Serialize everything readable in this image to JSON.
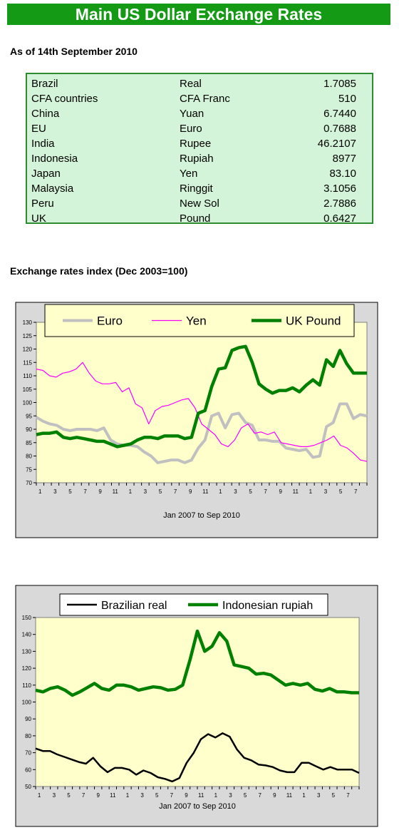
{
  "banner": {
    "title": "Main US Dollar Exchange Rates"
  },
  "asof": "As of 14th September 2010",
  "rates": [
    {
      "country": "Brazil",
      "currency": "Real",
      "value": "1.7085"
    },
    {
      "country": "CFA countries",
      "currency": "CFA Franc",
      "value": "510"
    },
    {
      "country": "China",
      "currency": "Yuan",
      "value": "6.7440"
    },
    {
      "country": "EU",
      "currency": "Euro",
      "value": "0.7688"
    },
    {
      "country": "India",
      "currency": "Rupee",
      "value": "46.2107"
    },
    {
      "country": "Indonesia",
      "currency": "Rupiah",
      "value": "8977"
    },
    {
      "country": "Japan",
      "currency": "Yen",
      "value": "83.10"
    },
    {
      "country": "Malaysia",
      "currency": "Ringgit",
      "value": "3.1056"
    },
    {
      "country": "Peru",
      "currency": "New Sol",
      "value": "2.7886"
    },
    {
      "country": "UK",
      "currency": "Pound",
      "value": "0.6427"
    }
  ],
  "section_title": "Exchange rates index (Dec 2003=100)",
  "colors": {
    "banner": "#149a14",
    "table_bg": "#d3f4d8",
    "plot_bg": "#ffffcc",
    "frame_bg": "#d9d9d9",
    "euro": "#c0c0c0",
    "yen": "#ff00ff",
    "pound": "#008000",
    "real": "#000000",
    "rupiah": "#008000"
  },
  "chart_data": [
    {
      "type": "line",
      "xlabel": "Jan 2007 to Sep 2010",
      "ylabel": "",
      "ylim": [
        70,
        130
      ],
      "yticks": [
        70,
        75,
        80,
        85,
        90,
        95,
        100,
        105,
        110,
        115,
        120,
        125,
        130
      ],
      "xtick_labels": [
        "1",
        "3",
        "5",
        "7",
        "9",
        "11",
        "1",
        "3",
        "5",
        "7",
        "9",
        "11",
        "1",
        "3",
        "5",
        "7",
        "9",
        "11",
        "1",
        "3",
        "5",
        "7"
      ],
      "legend": "top",
      "grid": false,
      "series": [
        {
          "name": "Euro",
          "color": "#c0c0c0",
          "width": 4,
          "values": [
            94.5,
            93,
            92,
            91.5,
            90,
            89.5,
            90,
            90,
            90,
            89.5,
            90.5,
            86,
            84.5,
            84,
            84,
            83.5,
            81.5,
            80,
            77.5,
            78,
            78.5,
            78.5,
            77.5,
            78.5,
            83,
            86,
            95,
            96,
            90.5,
            95.5,
            96,
            92.5,
            91.5,
            86,
            86,
            85.5,
            85.5,
            83,
            82.5,
            82,
            82.5,
            79.5,
            80,
            91,
            92.5,
            99.5,
            99.5,
            94,
            95.5,
            95
          ]
        },
        {
          "name": "Yen",
          "color": "#ff00ff",
          "width": 1.2,
          "values": [
            112.5,
            112,
            110,
            109.5,
            111,
            111.5,
            112.5,
            115,
            111,
            108,
            107,
            107,
            107.5,
            104,
            105.5,
            99.5,
            98,
            92,
            97,
            98.5,
            99,
            100,
            101,
            101.5,
            98,
            92,
            90,
            88,
            84.5,
            83.5,
            86,
            90.5,
            92,
            88.5,
            89,
            88,
            89,
            85,
            84.5,
            84,
            83.5,
            83.5,
            84,
            85,
            86,
            87.5,
            84,
            83,
            81,
            78.5,
            78
          ]
        },
        {
          "name": "UK Pound",
          "color": "#008000",
          "width": 4.5,
          "values": [
            88,
            88.5,
            88.5,
            89,
            87,
            86.5,
            87,
            86.5,
            86,
            85.5,
            85.5,
            84.5,
            83.5,
            84,
            84.5,
            86,
            87,
            87,
            86.5,
            87.5,
            87.5,
            87.5,
            86.5,
            87,
            96,
            97,
            106,
            112.5,
            113,
            119.5,
            120.5,
            121,
            115,
            107,
            105,
            103.5,
            104.5,
            104.5,
            105.5,
            104,
            106.5,
            108.5,
            106.5,
            116,
            113.5,
            119.5,
            114.5,
            111,
            111,
            111
          ]
        }
      ]
    },
    {
      "type": "line",
      "xlabel": "Jan 2007 to Sep 2010",
      "ylabel": "",
      "ylim": [
        50,
        150
      ],
      "yticks": [
        50,
        60,
        70,
        80,
        90,
        100,
        110,
        120,
        130,
        140,
        150
      ],
      "xtick_labels": [
        "1",
        "3",
        "5",
        "7",
        "9",
        "11",
        "1",
        "3",
        "5",
        "7",
        "9",
        "11",
        "1",
        "3",
        "5",
        "7",
        "9",
        "11",
        "1",
        "3",
        "5",
        "7"
      ],
      "legend": "top",
      "grid": false,
      "series": [
        {
          "name": "Brazilian real",
          "color": "#000000",
          "width": 2.5,
          "values": [
            72.5,
            71,
            71,
            69,
            67.5,
            66,
            64.5,
            63.5,
            67,
            62,
            58.5,
            61,
            61,
            60,
            57,
            59.5,
            58,
            55.5,
            54.5,
            53,
            55,
            64,
            70,
            78,
            81,
            79,
            81.5,
            79.5,
            72,
            67,
            65.5,
            63,
            62.5,
            61.5,
            59.5,
            58.5,
            58.5,
            64,
            64,
            62,
            60,
            61.5,
            60,
            60,
            60,
            58
          ]
        },
        {
          "name": "Indonesian rupiah",
          "color": "#008000",
          "width": 4.5,
          "values": [
            107,
            106,
            108,
            109,
            107,
            104,
            106,
            108.5,
            111,
            108,
            107,
            110,
            110,
            109,
            107,
            108,
            109,
            108.5,
            107,
            107.5,
            110,
            125,
            142,
            130,
            133,
            141,
            136,
            122,
            121,
            120,
            116.5,
            117,
            116,
            113,
            110,
            111,
            110,
            111,
            107.5,
            106.5,
            108,
            106,
            106,
            105.5,
            105.5
          ]
        }
      ]
    }
  ]
}
